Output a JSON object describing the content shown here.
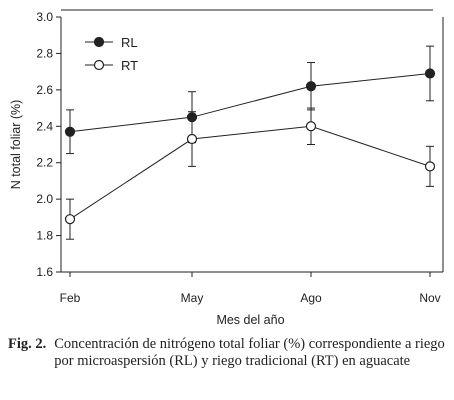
{
  "chart_data": {
    "type": "line",
    "categories": [
      "Feb",
      "May",
      "Ago",
      "Nov"
    ],
    "xlabel": "Mes del año",
    "ylabel": "N total foliar (%)",
    "ylim": [
      1.6,
      3.0
    ],
    "yticks": [
      "1.6",
      "1.8",
      "2.0",
      "2.2",
      "2.4",
      "2.6",
      "2.8",
      "3.0"
    ],
    "legend_position": "top-left",
    "grid": false,
    "series": [
      {
        "name": "RL",
        "marker": "filled-circle",
        "color": "#222222",
        "values": [
          2.37,
          2.45,
          2.62,
          2.69
        ],
        "error": [
          0.12,
          0.14,
          0.13,
          0.15
        ]
      },
      {
        "name": "RT",
        "marker": "open-circle",
        "color": "#222222",
        "values": [
          1.89,
          2.33,
          2.4,
          2.18
        ],
        "error": [
          0.11,
          0.15,
          0.1,
          0.11
        ]
      }
    ]
  },
  "caption": {
    "label": "Fig. 2.",
    "text": "Concentración de nitrógeno total foliar (%) correspondiente a riego por microaspersión (RL) y riego tradicional (RT) en aguacate"
  }
}
